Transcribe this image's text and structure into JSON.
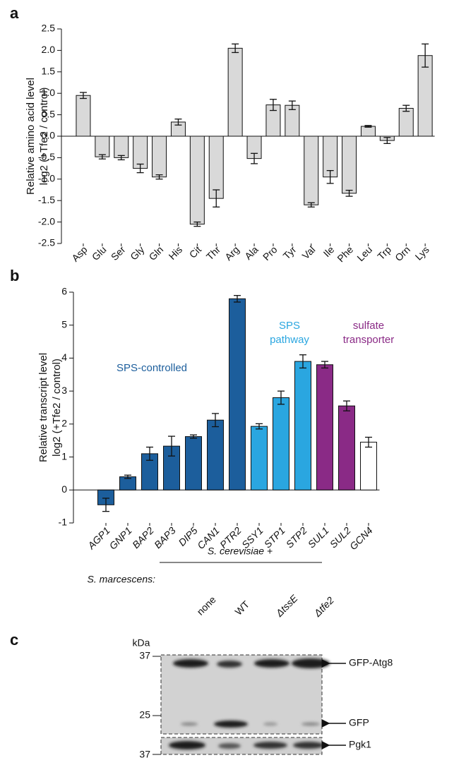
{
  "chart_data": [
    {
      "type": "bar",
      "label": "a",
      "ylabel": [
        "Relative amino acid level",
        "log2 (+Tfe2 / control)"
      ],
      "categories": [
        "Asp",
        "Glu",
        "Ser",
        "Gly",
        "Gln",
        "His",
        "Cit",
        "Thr",
        "Arg",
        "Ala",
        "Pro",
        "Tyr",
        "Val",
        "Ile",
        "Phe",
        "Leu",
        "Trp",
        "Orn",
        "Lys"
      ],
      "values": [
        0.95,
        -0.48,
        -0.5,
        -0.75,
        -0.95,
        0.33,
        -2.05,
        -1.45,
        2.05,
        -0.52,
        0.73,
        0.72,
        -1.6,
        -0.95,
        -1.33,
        0.23,
        -0.1,
        0.65,
        1.88
      ],
      "errors": [
        0.07,
        0.05,
        0.05,
        0.1,
        0.05,
        0.07,
        0.05,
        0.2,
        0.1,
        0.12,
        0.13,
        0.1,
        0.05,
        0.15,
        0.07,
        0.02,
        0.07,
        0.07,
        0.27
      ],
      "color": "#d9d9d9",
      "ylim": [
        -2.5,
        2.5
      ],
      "yticks": [
        2.5,
        {
          "value": 2,
          "label": "2.0"
        },
        1.5,
        {
          "value": 1,
          "label": "1.0"
        },
        0.5,
        {
          "value": 0,
          "label": "0.0"
        },
        -0.5,
        {
          "value": -1,
          "label": "-1.0"
        },
        -1.5,
        {
          "value": -2,
          "label": "-2.0"
        },
        -2.5
      ]
    },
    {
      "type": "bar",
      "label": "b",
      "ylabel": [
        "Relative transcript level",
        "log2 (+Tfe2 / control)"
      ],
      "categories": [
        "AGP1",
        "GNP1",
        "BAP2",
        "BAP3",
        "DIP5",
        "CAN1",
        "PTR2",
        "SSY1",
        "STP1",
        "STP2",
        "SUL1",
        "SUL2",
        "GCN4"
      ],
      "values": [
        -0.45,
        0.4,
        1.1,
        1.33,
        1.62,
        2.12,
        5.8,
        1.93,
        2.8,
        3.9,
        3.8,
        2.55,
        1.45
      ],
      "errors": [
        0.2,
        0.05,
        0.2,
        0.3,
        0.05,
        0.2,
        0.1,
        0.08,
        0.2,
        0.2,
        0.1,
        0.15,
        0.15
      ],
      "colors": [
        "#1c5e9c",
        "#1c5e9c",
        "#1c5e9c",
        "#1c5e9c",
        "#1c5e9c",
        "#1c5e9c",
        "#1c5e9c",
        "#2aa6e0",
        "#2aa6e0",
        "#2aa6e0",
        "#8a2a86",
        "#8a2a86",
        "#ffffff"
      ],
      "annotations": [
        {
          "text": [
            "SPS-controlled"
          ],
          "color": "#1c5e9c"
        },
        {
          "text": [
            "SPS",
            "pathway"
          ],
          "color": "#2aa6e0"
        },
        {
          "text": [
            "sulfate",
            "transporter"
          ],
          "color": "#8a2a86"
        }
      ],
      "ylim": [
        -1,
        6
      ],
      "yticks": [
        6,
        5,
        4,
        3,
        2,
        1,
        0,
        -1
      ]
    }
  ],
  "blot": {
    "label": "c",
    "host": "S. cerevisiae +",
    "strain_label": "S. marcescens:",
    "lanes": [
      "none",
      "WT",
      "ΔtssE",
      "Δtfe2"
    ],
    "unit": "kDa",
    "markers": [
      "37",
      "25",
      "37"
    ],
    "bands": [
      "GFP-Atg8",
      "GFP",
      "Pgk1"
    ]
  }
}
